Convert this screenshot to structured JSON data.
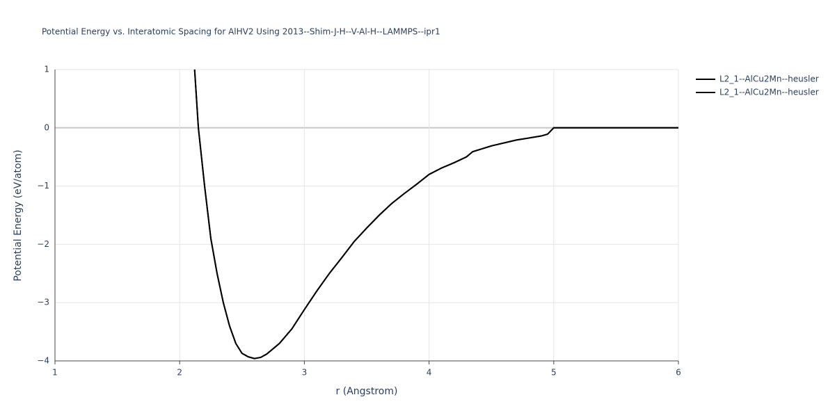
{
  "chart_data": {
    "type": "line",
    "title": "Potential Energy vs. Interatomic Spacing for AlHV2 Using 2013--Shim-J-H--V-Al-H--LAMMPS--ipr1",
    "x_label": "r (Angstrom)",
    "y_label": "Potential Energy (eV/atom)",
    "x": [
      2.12,
      2.15,
      2.2,
      2.25,
      2.3,
      2.35,
      2.4,
      2.45,
      2.5,
      2.55,
      2.6,
      2.65,
      2.7,
      2.8,
      2.9,
      3.0,
      3.1,
      3.2,
      3.3,
      3.4,
      3.5,
      3.6,
      3.7,
      3.8,
      3.9,
      4.0,
      4.1,
      4.2,
      4.3,
      4.35,
      4.5,
      4.7,
      4.9,
      4.95,
      5.0,
      6.0
    ],
    "series": [
      {
        "name": "L2_1--AlCu2Mn--heusler",
        "color": "#000000",
        "values": [
          1,
          0,
          -1.0,
          -1.9,
          -2.5,
          -3.0,
          -3.4,
          -3.7,
          -3.87,
          -3.93,
          -3.96,
          -3.94,
          -3.88,
          -3.7,
          -3.45,
          -3.12,
          -2.8,
          -2.5,
          -2.23,
          -1.95,
          -1.72,
          -1.5,
          -1.3,
          -1.13,
          -0.97,
          -0.8,
          -0.69,
          -0.6,
          -0.5,
          -0.41,
          -0.31,
          -0.21,
          -0.14,
          -0.11,
          0,
          0
        ]
      },
      {
        "name": "L2_1--AlCu2Mn--heusler",
        "color": "#000000",
        "values": [
          1,
          0,
          -1.0,
          -1.9,
          -2.5,
          -3.0,
          -3.4,
          -3.7,
          -3.87,
          -3.93,
          -3.96,
          -3.94,
          -3.88,
          -3.7,
          -3.45,
          -3.12,
          -2.8,
          -2.5,
          -2.23,
          -1.95,
          -1.72,
          -1.5,
          -1.3,
          -1.13,
          -0.97,
          -0.8,
          -0.69,
          -0.6,
          -0.5,
          -0.41,
          -0.31,
          -0.21,
          -0.14,
          -0.11,
          0,
          0
        ]
      }
    ],
    "xlim": [
      1,
      6
    ],
    "xticks": [
      1,
      2,
      3,
      4,
      5,
      6
    ],
    "ylim": [
      -4,
      1
    ],
    "yticks": [
      {
        "value": -4,
        "label": "−4"
      },
      {
        "value": -3,
        "label": "−3"
      },
      {
        "value": -2,
        "label": "−2"
      },
      {
        "value": -1,
        "label": "−1"
      },
      0,
      1
    ],
    "grid": true,
    "legend": "top-right"
  }
}
